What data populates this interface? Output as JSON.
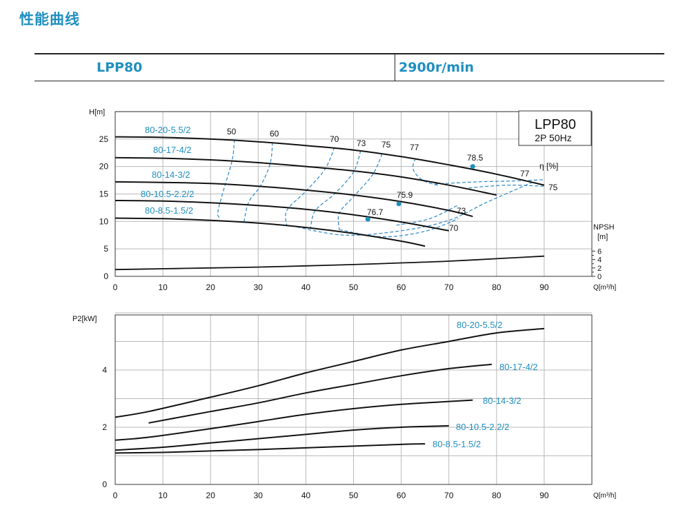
{
  "page": {
    "title": "性能曲线",
    "model": "LPP80",
    "speed": "2900r/min"
  },
  "colors": {
    "accent": "#1f8fbf",
    "curve": "#111111",
    "efficiency": "#2a86c4",
    "grid": "#b8b8b8"
  },
  "chart_data": [
    {
      "type": "line",
      "xlabel": "Q[m³/h]",
      "ylabel": "H[m]",
      "y2label": "NPSH [m]",
      "xlim": [
        0,
        100
      ],
      "ylim": [
        0,
        30
      ],
      "x_ticks": [
        "0",
        "10",
        "20",
        "30",
        "40",
        "50",
        "60",
        "70",
        "80",
        "90"
      ],
      "y_ticks": [
        "0",
        "5",
        "10",
        "15",
        "20",
        "25"
      ],
      "npsh_ticks": [
        "0",
        "2",
        "4",
        "6"
      ],
      "grid": true,
      "model_box": {
        "line1": "LPP80",
        "line2": "2P  50Hz"
      },
      "eta_label": "η [%]",
      "series": [
        {
          "name": "80-20-5.5/2",
          "x": [
            0,
            10,
            20,
            30,
            40,
            50,
            60,
            70,
            80,
            90
          ],
          "y": [
            25.4,
            25.3,
            25.0,
            24.5,
            23.8,
            23.0,
            21.8,
            20.3,
            18.6,
            16.6
          ]
        },
        {
          "name": "80-17-4/2",
          "x": [
            0,
            10,
            20,
            30,
            40,
            50,
            60,
            70,
            80
          ],
          "y": [
            21.6,
            21.5,
            21.2,
            20.7,
            20.0,
            19.2,
            18.1,
            16.6,
            14.8
          ]
        },
        {
          "name": "80-14-3/2",
          "x": [
            0,
            10,
            20,
            30,
            40,
            50,
            60,
            70,
            75
          ],
          "y": [
            17.2,
            17.1,
            16.9,
            16.4,
            15.7,
            14.8,
            13.6,
            12.0,
            10.9
          ]
        },
        {
          "name": "80-10.5-2.2/2",
          "x": [
            0,
            10,
            20,
            30,
            40,
            50,
            60,
            70
          ],
          "y": [
            13.8,
            13.7,
            13.4,
            12.9,
            12.2,
            11.2,
            9.9,
            8.3
          ]
        },
        {
          "name": "80-8.5-1.5/2",
          "x": [
            0,
            10,
            20,
            30,
            40,
            50,
            60,
            65
          ],
          "y": [
            10.6,
            10.5,
            10.2,
            9.7,
            8.9,
            7.8,
            6.4,
            5.5
          ]
        }
      ],
      "npsh": {
        "x": [
          0,
          10,
          20,
          30,
          40,
          50,
          60,
          70,
          80,
          90
        ],
        "y": [
          1.6,
          1.8,
          2.0,
          2.2,
          2.5,
          2.8,
          3.2,
          3.6,
          4.2,
          4.8
        ]
      },
      "efficiency_labels": [
        "50",
        "60",
        "70",
        "73",
        "75",
        "77",
        "78.5",
        "77",
        "75",
        "73",
        "70",
        "75.9",
        "76.7"
      ],
      "best_points": [
        {
          "label": "78.5",
          "x": 75,
          "y": 20.0
        },
        {
          "label": "75.9",
          "x": 59.5,
          "y": 13.2
        },
        {
          "label": "76.7",
          "x": 53,
          "y": 10.4
        }
      ]
    },
    {
      "type": "line",
      "xlabel": "Q[m³/h]",
      "ylabel": "P2[kW]",
      "xlim": [
        0,
        100
      ],
      "ylim": [
        0,
        6
      ],
      "x_ticks": [
        "0",
        "10",
        "20",
        "30",
        "40",
        "50",
        "60",
        "70",
        "80",
        "90"
      ],
      "y_ticks": [
        "0",
        "2",
        "4"
      ],
      "grid": true,
      "series": [
        {
          "name": "80-20-5.5/2",
          "x": [
            0,
            7,
            20,
            30,
            40,
            50,
            60,
            70,
            80,
            90
          ],
          "y": [
            2.35,
            2.55,
            3.05,
            3.45,
            3.9,
            4.3,
            4.7,
            5.0,
            5.3,
            5.45
          ]
        },
        {
          "name": "80-17-4/2",
          "x": [
            7,
            20,
            30,
            40,
            50,
            60,
            70,
            79
          ],
          "y": [
            2.15,
            2.55,
            2.85,
            3.2,
            3.5,
            3.8,
            4.05,
            4.2
          ]
        },
        {
          "name": "80-14-3/2",
          "x": [
            0,
            7,
            20,
            30,
            40,
            50,
            60,
            70,
            75
          ],
          "y": [
            1.55,
            1.65,
            1.95,
            2.2,
            2.45,
            2.65,
            2.8,
            2.9,
            2.95
          ]
        },
        {
          "name": "80-10.5-2.2/2",
          "x": [
            0,
            10,
            20,
            30,
            40,
            50,
            60,
            70
          ],
          "y": [
            1.2,
            1.3,
            1.45,
            1.6,
            1.75,
            1.9,
            2.0,
            2.05
          ]
        },
        {
          "name": "80-8.5-1.5/2",
          "x": [
            0,
            10,
            20,
            30,
            40,
            50,
            60,
            65
          ],
          "y": [
            1.1,
            1.12,
            1.17,
            1.22,
            1.28,
            1.34,
            1.4,
            1.42
          ]
        }
      ]
    }
  ]
}
